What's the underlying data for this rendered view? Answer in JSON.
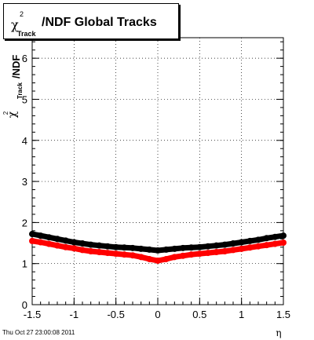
{
  "title": {
    "symbol": "χ",
    "superscript": "2",
    "subscript": "Track",
    "rest": "/NDF  Global Tracks"
  },
  "footer": {
    "timestamp": "Thu Oct 27 23:00:08 2011"
  },
  "chart_data": {
    "type": "scatter",
    "xlabel": "η",
    "ylabel": "χ²_Track/NDF",
    "ylabel_parts": {
      "symbol": "χ",
      "superscript": "2",
      "subscript": "Track",
      "rest": "/NDF"
    },
    "xlim": [
      -1.5,
      1.5
    ],
    "ylim": [
      0,
      6.5
    ],
    "xticks": [
      -1.5,
      -1,
      -0.5,
      0,
      0.5,
      1,
      1.5
    ],
    "xtick_labels": [
      "-1.5",
      "-1",
      "-0.5",
      "0",
      "0.5",
      "1",
      "1.5"
    ],
    "yticks": [
      0,
      1,
      2,
      3,
      4,
      5,
      6
    ],
    "ytick_labels": [
      "0",
      "1",
      "2",
      "3",
      "4",
      "5",
      "6"
    ],
    "grid": true,
    "series": [
      {
        "color": "#000000",
        "x": [
          -1.5,
          -1.4,
          -1.3,
          -1.2,
          -1.1,
          -1.0,
          -0.9,
          -0.8,
          -0.7,
          -0.6,
          -0.5,
          -0.4,
          -0.3,
          -0.2,
          -0.1,
          0.0,
          0.1,
          0.2,
          0.3,
          0.4,
          0.5,
          0.6,
          0.7,
          0.8,
          0.9,
          1.0,
          1.1,
          1.2,
          1.3,
          1.4,
          1.5
        ],
        "y": [
          1.72,
          1.68,
          1.64,
          1.6,
          1.56,
          1.52,
          1.49,
          1.46,
          1.44,
          1.42,
          1.4,
          1.39,
          1.38,
          1.36,
          1.34,
          1.32,
          1.34,
          1.36,
          1.38,
          1.39,
          1.4,
          1.42,
          1.44,
          1.46,
          1.49,
          1.52,
          1.55,
          1.58,
          1.62,
          1.65,
          1.68
        ]
      },
      {
        "color": "#ff0000",
        "x": [
          -1.5,
          -1.4,
          -1.3,
          -1.2,
          -1.1,
          -1.0,
          -0.9,
          -0.8,
          -0.7,
          -0.6,
          -0.5,
          -0.4,
          -0.3,
          -0.2,
          -0.1,
          0.0,
          0.1,
          0.2,
          0.3,
          0.4,
          0.5,
          0.6,
          0.7,
          0.8,
          0.9,
          1.0,
          1.1,
          1.2,
          1.3,
          1.4,
          1.5
        ],
        "y": [
          1.55,
          1.52,
          1.48,
          1.44,
          1.4,
          1.37,
          1.33,
          1.3,
          1.28,
          1.26,
          1.24,
          1.22,
          1.2,
          1.16,
          1.11,
          1.07,
          1.11,
          1.16,
          1.19,
          1.22,
          1.24,
          1.26,
          1.28,
          1.3,
          1.33,
          1.36,
          1.39,
          1.42,
          1.45,
          1.48,
          1.51
        ]
      }
    ]
  }
}
